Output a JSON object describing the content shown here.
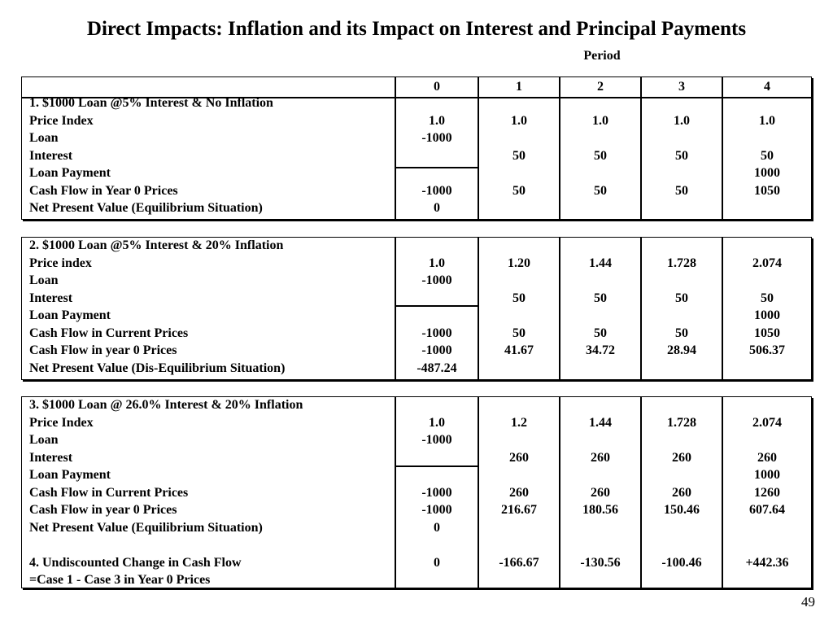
{
  "title": "Direct Impacts: Inflation and its Impact on Interest and Principal Payments",
  "period_label": "Period",
  "page_number": "49",
  "periods": [
    "0",
    "1",
    "2",
    "3",
    "4"
  ],
  "section1": {
    "lines": [
      "1. $1000 Loan @5% Interest & No Inflation",
      "Price Index",
      "Loan",
      "Interest",
      "Loan Payment",
      "Cash Flow in Year 0  Prices",
      "Net Present Value (Equilibrium Situation)"
    ],
    "cols": [
      [
        "",
        "1.0",
        "-1000",
        "",
        "",
        "-1000",
        "0"
      ],
      [
        "",
        "1.0",
        "",
        "50",
        "",
        "50",
        ""
      ],
      [
        "",
        "1.0",
        "",
        "50",
        "",
        "50",
        ""
      ],
      [
        "",
        "1.0",
        "",
        "50",
        "",
        "50",
        ""
      ],
      [
        "",
        "1.0",
        "",
        "50",
        "1000",
        "1050",
        ""
      ]
    ]
  },
  "section2": {
    "lines": [
      "2. $1000 Loan @5% Interest & 20% Inflation",
      "Price index",
      "Loan",
      "Interest",
      "Loan Payment",
      "Cash Flow in Current Prices",
      "Cash Flow in year 0  Prices",
      "Net Present Value   (Dis-Equilibrium Situation)"
    ],
    "cols": [
      [
        "",
        "1.0",
        "-1000",
        "",
        "",
        "-1000",
        "-1000",
        "-487.24"
      ],
      [
        "",
        "1.20",
        "",
        "50",
        "",
        "50",
        "41.67",
        ""
      ],
      [
        "",
        "1.44",
        "",
        "50",
        "",
        "50",
        "34.72",
        ""
      ],
      [
        "",
        "1.728",
        "",
        "50",
        "",
        "50",
        "28.94",
        ""
      ],
      [
        "",
        "2.074",
        "",
        "50",
        "1000",
        "1050",
        "506.37",
        ""
      ]
    ]
  },
  "section3": {
    "lines": [
      "3. $1000 Loan @ 26.0% Interest & 20% Inflation",
      "Price Index",
      "Loan",
      "Interest",
      "Loan Payment",
      "Cash Flow in Current Prices",
      "Cash Flow in year 0 Prices",
      "Net Present Value (Equilibrium Situation)",
      "",
      "4. Undiscounted Change in Cash Flow",
      "=Case 1 - Case 3 in Year 0  Prices"
    ],
    "cols": [
      [
        "",
        "1.0",
        "-1000",
        "",
        "",
        "-1000",
        "-1000",
        "0",
        "",
        "0",
        ""
      ],
      [
        "",
        "1.2",
        "",
        "260",
        "",
        "260",
        "216.67",
        "",
        "",
        "-166.67",
        ""
      ],
      [
        "",
        "1.44",
        "",
        "260",
        "",
        "260",
        "180.56",
        "",
        "",
        "-130.56",
        ""
      ],
      [
        "",
        "1.728",
        "",
        "260",
        "",
        "260",
        "150.46",
        "",
        "",
        "-100.46",
        ""
      ],
      [
        "",
        "2.074",
        "",
        "260",
        "1000",
        "1260",
        "607.64",
        "",
        "",
        "+442.36",
        ""
      ]
    ]
  }
}
